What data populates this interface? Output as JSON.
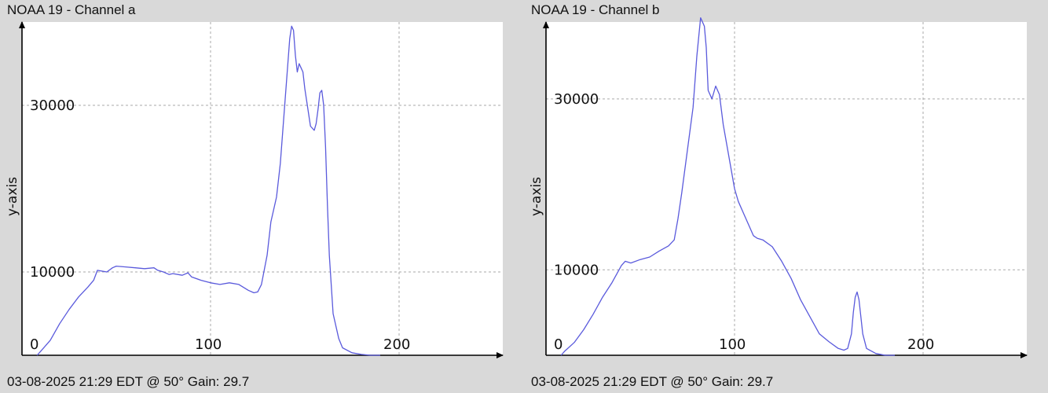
{
  "panels": [
    {
      "title": "NOAA 19 - Channel a",
      "footer": "03-08-2025 21:29 EDT @ 50° Gain: 29.7"
    },
    {
      "title": "NOAA 19 - Channel b",
      "footer": "03-08-2025 21:29 EDT @ 50° Gain: 29.7"
    }
  ],
  "colors": {
    "background": "#d9d9d9",
    "plot_background": "#ffffff",
    "series": "#5a5adc",
    "grid": "#aaaaaa"
  },
  "chart_data": [
    {
      "type": "line",
      "title": "NOAA 19 - Channel a",
      "xlabel": "",
      "ylabel": "y-axis",
      "xlim": [
        0,
        255
      ],
      "ylim": [
        0,
        40000
      ],
      "x_ticks": [
        0,
        100,
        200
      ],
      "y_ticks": [
        10000,
        30000
      ],
      "y_tick_labels": [
        "10000",
        "30000"
      ],
      "x_tick_labels": [
        "0",
        "100",
        "200"
      ],
      "grid": true,
      "series": [
        {
          "x": [
            8,
            10,
            15,
            20,
            25,
            30,
            35,
            38,
            40,
            45,
            48,
            50,
            55,
            60,
            65,
            70,
            72,
            75,
            78,
            80,
            85,
            88,
            90,
            95,
            100,
            105,
            110,
            115,
            120,
            123,
            125,
            127,
            130,
            132,
            135,
            137,
            140,
            141,
            142,
            143,
            144,
            145,
            146,
            147,
            148,
            149,
            150,
            152,
            153,
            155,
            156,
            157,
            158,
            159,
            160,
            161,
            162,
            163,
            165,
            168,
            170,
            175,
            180,
            185,
            190
          ],
          "y": [
            0,
            500,
            1800,
            3800,
            5500,
            7000,
            8200,
            9000,
            10200,
            10000,
            10500,
            10700,
            10600,
            10500,
            10400,
            10500,
            10200,
            10000,
            9700,
            9800,
            9600,
            9900,
            9400,
            9000,
            8700,
            8500,
            8700,
            8500,
            7800,
            7500,
            7600,
            8500,
            12000,
            16000,
            19000,
            23000,
            32000,
            35000,
            38000,
            39500,
            39000,
            36000,
            34000,
            35000,
            34500,
            34000,
            32000,
            29000,
            27500,
            27000,
            27800,
            29500,
            31500,
            31800,
            30000,
            25000,
            18000,
            12000,
            5000,
            2000,
            900,
            300,
            100,
            0,
            0
          ]
        }
      ]
    },
    {
      "type": "line",
      "title": "NOAA 19 - Channel b",
      "xlabel": "",
      "ylabel": "y-axis",
      "xlim": [
        0,
        255
      ],
      "ylim": [
        0,
        39000
      ],
      "x_ticks": [
        0,
        100,
        200
      ],
      "y_ticks": [
        10000,
        30000
      ],
      "y_tick_labels": [
        "10000",
        "30000"
      ],
      "x_tick_labels": [
        "0",
        "100",
        "200"
      ],
      "grid": true,
      "series": [
        {
          "x": [
            8,
            10,
            15,
            20,
            25,
            30,
            35,
            40,
            42,
            45,
            50,
            55,
            60,
            65,
            68,
            70,
            72,
            75,
            78,
            80,
            82,
            84,
            85,
            86,
            88,
            90,
            92,
            94,
            96,
            98,
            100,
            102,
            105,
            108,
            110,
            112,
            115,
            120,
            125,
            130,
            135,
            140,
            145,
            150,
            155,
            158,
            160,
            162,
            163,
            164,
            165,
            166,
            167,
            168,
            170,
            175,
            180,
            185
          ],
          "y": [
            0,
            500,
            1500,
            3000,
            4800,
            6800,
            8500,
            10500,
            11000,
            10800,
            11200,
            11500,
            12200,
            12800,
            13500,
            16000,
            19000,
            24000,
            29000,
            35000,
            39500,
            38500,
            36000,
            31000,
            30000,
            31500,
            30500,
            27000,
            24500,
            22000,
            19500,
            18000,
            16500,
            15000,
            14000,
            13700,
            13500,
            12700,
            11000,
            9000,
            6500,
            4500,
            2500,
            1600,
            800,
            600,
            800,
            2500,
            5000,
            6800,
            7400,
            6500,
            4500,
            2500,
            800,
            200,
            0,
            0
          ]
        }
      ]
    }
  ]
}
